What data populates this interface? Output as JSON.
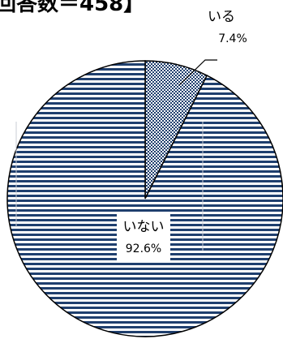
{
  "chart_data": {
    "type": "pie",
    "title": "回答数＝458】",
    "slices": [
      {
        "label": "いる",
        "value": 7.4,
        "value_text": "7.4%",
        "pattern": "dots"
      },
      {
        "label": "いない",
        "value": 92.6,
        "value_text": "92.6%",
        "pattern": "horizontal-lines"
      }
    ],
    "colors": {
      "stroke": "#000000",
      "stripe": "#1f3f6e",
      "dots": "#1f3f6e",
      "background": "#ffffff"
    }
  }
}
